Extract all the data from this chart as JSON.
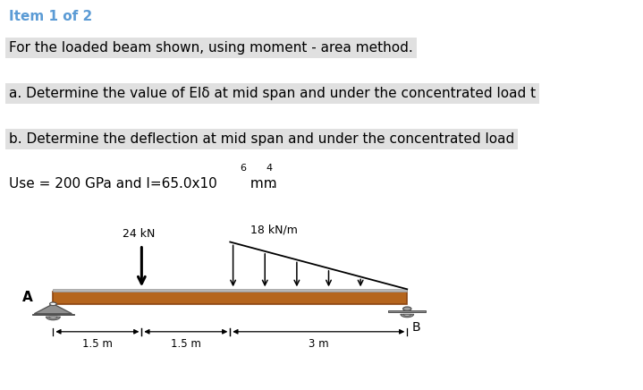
{
  "title_text": "Item 1 of 2",
  "title_color": "#5b9bd5",
  "line1": "For the loaded beam shown, using moment - area method.",
  "line2": "a. Determine the value of Elδ at mid span and under the concentrated load t",
  "line3": "b. Determine the deflection at mid span and under the concentrated load",
  "line4": "Use = 200 GPa and I=65.0x10",
  "line4_sup": "6",
  "line4_end": " mm",
  "line4_sup2": "4",
  "line4_dot": ".",
  "bg_color": "#ffffff",
  "beam_color": "#b5651d",
  "beam_edge_color": "#8B4513",
  "beam_top_color": "#c8c8c8",
  "support_color": "#909090",
  "conc_load_label": "24 kN",
  "dist_load_label": "18 kN/m",
  "label_A": "A",
  "label_B": "B",
  "dim1": "1.5 m",
  "dim2": "1.5 m",
  "dim3": "3 m",
  "text_highlight_color": "#e0e0e0",
  "text_fontsize": 11
}
